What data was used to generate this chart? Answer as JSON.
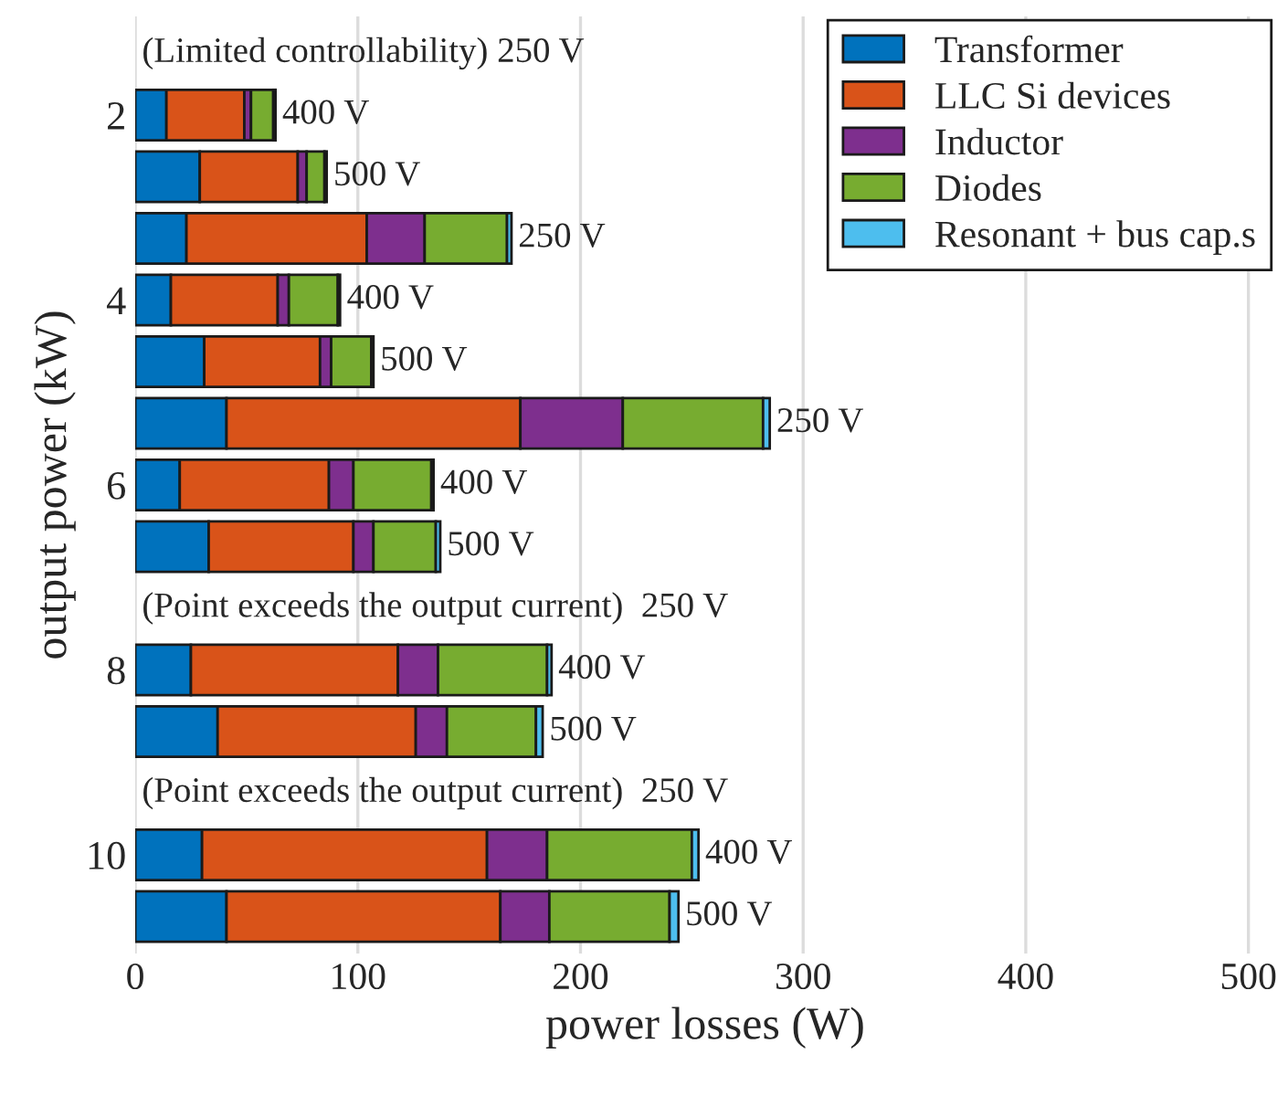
{
  "chart_data": {
    "type": "bar",
    "orientation": "horizontal",
    "stacked": true,
    "xlabel": "power losses (W)",
    "ylabel": "output power (kW)",
    "categories": [
      null,
      "2",
      null,
      null,
      "4",
      null,
      null,
      "6",
      null,
      null,
      "8",
      null,
      null,
      "10",
      null
    ],
    "series": [
      {
        "name": "Transformer",
        "color": "#0072bd",
        "values": [
          null,
          14,
          29,
          23,
          16,
          31,
          41,
          20,
          33,
          null,
          25,
          37,
          null,
          30,
          41
        ]
      },
      {
        "name": "LLC Si devices",
        "color": "#d95319",
        "values": [
          null,
          35,
          44,
          81,
          48,
          52,
          132,
          67,
          65,
          null,
          93,
          89,
          null,
          128,
          123
        ]
      },
      {
        "name": "Inductor",
        "color": "#7e2f8e",
        "values": [
          null,
          3,
          4,
          26,
          5,
          5,
          46,
          11,
          9,
          null,
          18,
          14,
          null,
          27,
          22
        ]
      },
      {
        "name": "Diodes",
        "color": "#77ac30",
        "values": [
          null,
          10,
          8,
          37,
          22,
          18,
          63,
          35,
          28,
          null,
          49,
          40,
          null,
          65,
          54
        ]
      },
      {
        "name": "Resonant + bus cap.s",
        "color": "#4dbeee",
        "values": [
          null,
          1,
          1,
          2,
          1,
          1,
          3,
          1,
          2,
          null,
          2,
          3,
          null,
          3,
          4
        ]
      }
    ],
    "annotations": [
      "(Limited controllability) 250 V",
      "400 V",
      "500 V",
      "250 V",
      "400 V",
      "500 V",
      "250 V",
      "400 V",
      "500 V",
      "(Point exceeds the output current)  250 V",
      "400 V",
      "500 V",
      "(Point exceeds the output current)  250 V",
      "400 V",
      "500 V"
    ],
    "xlim": [
      0,
      512
    ],
    "xticks": [
      0,
      100,
      200,
      300,
      400,
      500
    ],
    "grid": "x",
    "legend": "top right"
  }
}
